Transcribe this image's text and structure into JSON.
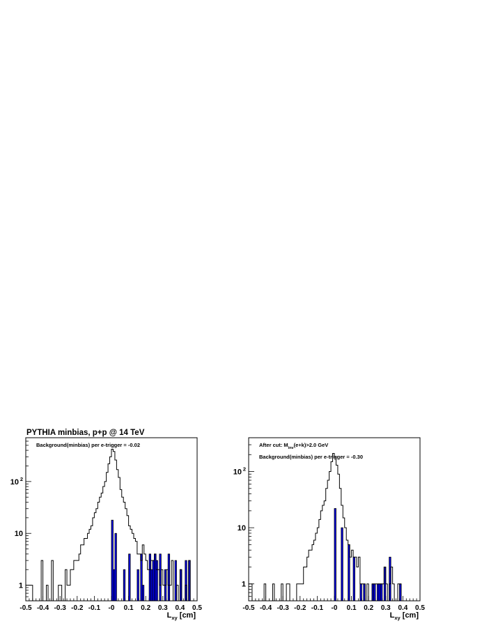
{
  "figure_title": "PYTHIA minbias, p+p @ 14 TeV",
  "chart_data": [
    {
      "type": "histogram",
      "log_y": true,
      "xlabel_main": "L",
      "xlabel_sub": "xy",
      "xlabel_unit": " [cm]",
      "xlim": [
        -0.5,
        0.5
      ],
      "ylim": [
        0.5,
        700
      ],
      "x_ticks": [
        "-0.5",
        "-0.4",
        "-0.3",
        "-0.2",
        "-0.1",
        "-0",
        "0.1",
        "0.2",
        "0.3",
        "0.4",
        "0.5"
      ],
      "y_ticks": [
        {
          "value": 1,
          "label": "1",
          "sup": ""
        },
        {
          "value": 10,
          "label": "10",
          "sup": ""
        },
        {
          "value": 100,
          "label": "10",
          "sup": "2"
        }
      ],
      "annotations": [
        "Background(minbias) per e-trigger = -0.02"
      ],
      "series": [
        {
          "role": "all",
          "bins": [
            [
              -0.5,
              1
            ],
            [
              -0.49,
              1
            ],
            [
              -0.48,
              1
            ],
            [
              -0.47,
              1
            ],
            [
              -0.41,
              3
            ],
            [
              -0.38,
              1
            ],
            [
              -0.35,
              3
            ],
            [
              -0.31,
              1
            ],
            [
              -0.3,
              1
            ],
            [
              -0.27,
              2
            ],
            [
              -0.26,
              1
            ],
            [
              -0.25,
              1
            ],
            [
              -0.24,
              2
            ],
            [
              -0.23,
              2
            ],
            [
              -0.22,
              3
            ],
            [
              -0.21,
              3
            ],
            [
              -0.2,
              3
            ],
            [
              -0.19,
              4
            ],
            [
              -0.18,
              6
            ],
            [
              -0.17,
              6
            ],
            [
              -0.16,
              8
            ],
            [
              -0.15,
              8
            ],
            [
              -0.14,
              10
            ],
            [
              -0.13,
              12
            ],
            [
              -0.12,
              14
            ],
            [
              -0.11,
              20
            ],
            [
              -0.1,
              25
            ],
            [
              -0.09,
              30
            ],
            [
              -0.08,
              40
            ],
            [
              -0.07,
              50
            ],
            [
              -0.06,
              60
            ],
            [
              -0.05,
              80
            ],
            [
              -0.04,
              100
            ],
            [
              -0.03,
              150
            ],
            [
              -0.02,
              220
            ],
            [
              -0.01,
              300
            ],
            [
              0.0,
              420
            ],
            [
              0.01,
              380
            ],
            [
              0.02,
              260
            ],
            [
              0.03,
              170
            ],
            [
              0.04,
              120
            ],
            [
              0.05,
              70
            ],
            [
              0.06,
              50
            ],
            [
              0.07,
              40
            ],
            [
              0.08,
              30
            ],
            [
              0.09,
              22
            ],
            [
              0.1,
              14
            ],
            [
              0.11,
              12
            ],
            [
              0.12,
              10
            ],
            [
              0.13,
              8
            ],
            [
              0.14,
              7
            ],
            [
              0.15,
              4
            ],
            [
              0.16,
              4
            ],
            [
              0.17,
              3
            ],
            [
              0.18,
              6
            ],
            [
              0.19,
              4
            ],
            [
              0.2,
              3
            ],
            [
              0.21,
              2
            ],
            [
              0.22,
              2
            ],
            [
              0.23,
              3
            ],
            [
              0.24,
              3
            ],
            [
              0.25,
              4
            ],
            [
              0.26,
              2
            ],
            [
              0.27,
              2
            ],
            [
              0.28,
              1
            ],
            [
              0.29,
              2
            ],
            [
              0.3,
              1
            ],
            [
              0.31,
              1
            ],
            [
              0.32,
              2
            ],
            [
              0.33,
              1
            ],
            [
              0.34,
              1
            ],
            [
              0.35,
              3
            ],
            [
              0.38,
              1
            ],
            [
              0.4,
              2
            ],
            [
              0.43,
              1
            ],
            [
              0.45,
              3
            ]
          ]
        },
        {
          "role": "selected",
          "color": "#0000ee",
          "bins": [
            [
              0.0,
              18
            ],
            [
              0.01,
              2
            ],
            [
              0.02,
              10
            ],
            [
              0.07,
              2
            ],
            [
              0.1,
              4
            ],
            [
              0.15,
              2
            ],
            [
              0.17,
              4
            ],
            [
              0.18,
              1
            ],
            [
              0.22,
              4
            ],
            [
              0.23,
              2
            ],
            [
              0.24,
              3
            ],
            [
              0.25,
              4
            ],
            [
              0.26,
              3
            ],
            [
              0.28,
              4
            ],
            [
              0.31,
              2
            ],
            [
              0.33,
              4
            ],
            [
              0.37,
              3
            ],
            [
              0.4,
              2
            ],
            [
              0.43,
              3
            ],
            [
              0.45,
              3
            ]
          ]
        }
      ]
    },
    {
      "type": "histogram",
      "log_y": true,
      "xlabel_main": "L",
      "xlabel_sub": "xy",
      "xlabel_unit": " [cm]",
      "xlim": [
        -0.5,
        0.5
      ],
      "ylim": [
        0.5,
        400
      ],
      "x_ticks": [
        "-0.5",
        "-0.4",
        "-0.3",
        "-0.2",
        "-0.1",
        "-0",
        "0.1",
        "0.2",
        "0.3",
        "0.4",
        "0.5"
      ],
      "y_ticks": [
        {
          "value": 1,
          "label": "1",
          "sup": ""
        },
        {
          "value": 10,
          "label": "10",
          "sup": ""
        },
        {
          "value": 100,
          "label": "10",
          "sup": "2"
        }
      ],
      "annotations": [
        "After cut: M",
        "inv",
        "(e+k)>2.0 GeV",
        "Background(minbias) per e-trigger = -0.30"
      ],
      "series": [
        {
          "role": "all",
          "bins": [
            [
              -0.5,
              1
            ],
            [
              -0.49,
              1
            ],
            [
              -0.41,
              1
            ],
            [
              -0.36,
              1
            ],
            [
              -0.31,
              1
            ],
            [
              -0.28,
              1
            ],
            [
              -0.27,
              1
            ],
            [
              -0.22,
              1
            ],
            [
              -0.21,
              1
            ],
            [
              -0.2,
              1
            ],
            [
              -0.19,
              1
            ],
            [
              -0.18,
              2
            ],
            [
              -0.17,
              2
            ],
            [
              -0.16,
              3
            ],
            [
              -0.15,
              4
            ],
            [
              -0.14,
              4
            ],
            [
              -0.13,
              5
            ],
            [
              -0.12,
              6
            ],
            [
              -0.11,
              8
            ],
            [
              -0.1,
              10
            ],
            [
              -0.09,
              14
            ],
            [
              -0.08,
              20
            ],
            [
              -0.07,
              25
            ],
            [
              -0.06,
              30
            ],
            [
              -0.05,
              50
            ],
            [
              -0.04,
              70
            ],
            [
              -0.03,
              100
            ],
            [
              -0.02,
              150
            ],
            [
              -0.01,
              210
            ],
            [
              0.0,
              180
            ],
            [
              0.01,
              130
            ],
            [
              0.02,
              90
            ],
            [
              0.03,
              50
            ],
            [
              0.04,
              25
            ],
            [
              0.05,
              15
            ],
            [
              0.06,
              10
            ],
            [
              0.07,
              6
            ],
            [
              0.08,
              5
            ],
            [
              0.09,
              3
            ],
            [
              0.1,
              4
            ],
            [
              0.11,
              3
            ],
            [
              0.12,
              3
            ],
            [
              0.13,
              2
            ],
            [
              0.14,
              3
            ],
            [
              0.15,
              1
            ],
            [
              0.16,
              1
            ],
            [
              0.17,
              1
            ],
            [
              0.19,
              1
            ],
            [
              0.22,
              1
            ],
            [
              0.23,
              1
            ],
            [
              0.24,
              1
            ],
            [
              0.25,
              1
            ],
            [
              0.26,
              1
            ],
            [
              0.27,
              1
            ],
            [
              0.28,
              1
            ],
            [
              0.29,
              2
            ],
            [
              0.3,
              1
            ],
            [
              0.32,
              1
            ],
            [
              0.33,
              2
            ],
            [
              0.34,
              1
            ],
            [
              0.37,
              1
            ],
            [
              0.38,
              1
            ]
          ]
        },
        {
          "role": "selected",
          "color": "#0000ee",
          "bins": [
            [
              0.0,
              22
            ],
            [
              0.04,
              10
            ],
            [
              0.08,
              5
            ],
            [
              0.11,
              3
            ],
            [
              0.15,
              1
            ],
            [
              0.17,
              1
            ],
            [
              0.22,
              1
            ],
            [
              0.23,
              1
            ],
            [
              0.25,
              1
            ],
            [
              0.26,
              1
            ],
            [
              0.27,
              1
            ],
            [
              0.29,
              2
            ],
            [
              0.32,
              3
            ],
            [
              0.38,
              1
            ]
          ]
        }
      ]
    }
  ]
}
